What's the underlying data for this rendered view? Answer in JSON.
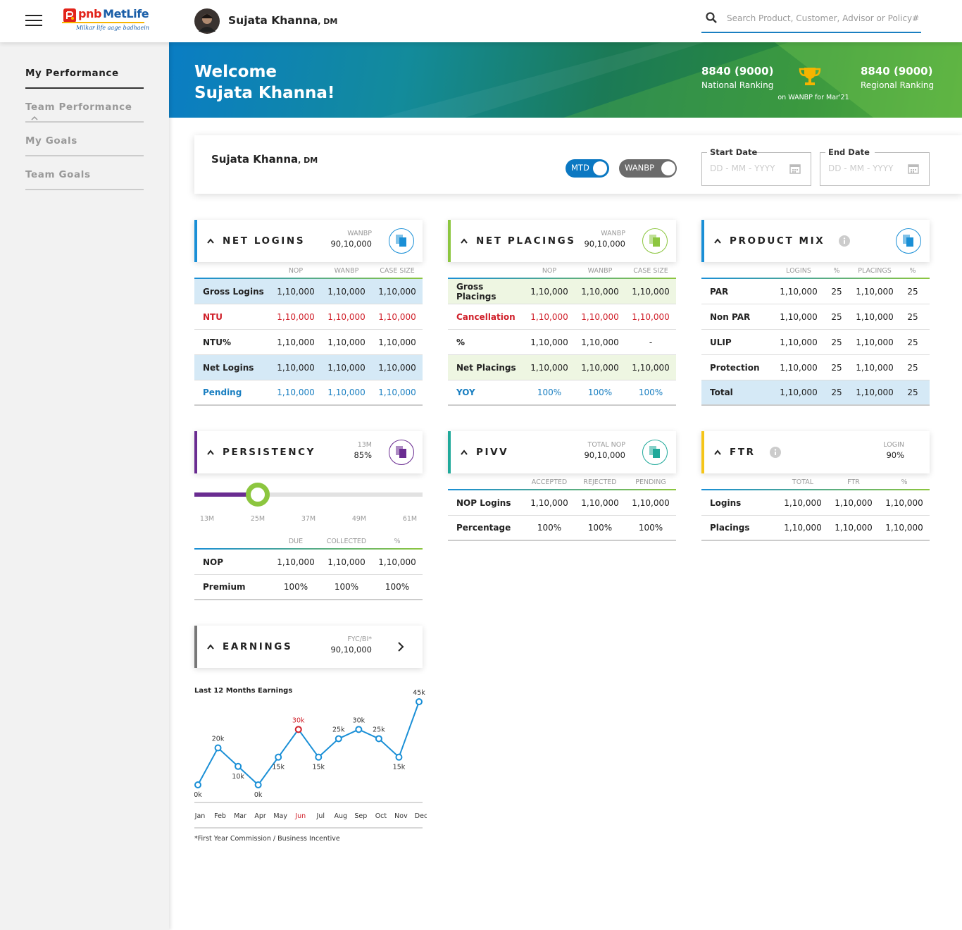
{
  "header": {
    "brand_prefix": "pnb",
    "brand": "MetLife",
    "tagline": "Milkar life aage badhaein",
    "user": "Sujata Khanna",
    "role": ", DM",
    "search_placeholder": "Search Product, Customer, Advisor or Policy#"
  },
  "sidebar": {
    "active": 0,
    "items": [
      {
        "label": "My Performance",
        "expandable": false
      },
      {
        "label": "Team Performance",
        "expandable": true
      },
      {
        "label": "My Goals",
        "expandable": false
      },
      {
        "label": "Team Goals",
        "expandable": false
      }
    ]
  },
  "banner": {
    "greeting": "Welcome",
    "name": "Sujata Khanna!",
    "national_rank": "8840 (9000)",
    "national_label": "National Ranking",
    "trophy_caption": "on WANBP for Mar'21",
    "regional_rank": "8840 (9000)",
    "regional_label": "Regional Ranking"
  },
  "filter": {
    "name": "Sujata Khanna",
    "role": ", DM",
    "toggles": [
      {
        "label": "MTD",
        "on": true,
        "color": "#0b78c2"
      },
      {
        "label": "WANBP",
        "on": false,
        "color": "#6b6b6b"
      }
    ],
    "start_label": "Start Date",
    "end_label": "End Date",
    "date_placeholder": "DD - MM - YYYY"
  },
  "cards": [
    {
      "title": "NET LOGINS",
      "accent": "#1a8fd6",
      "metric_label": "WANBP",
      "metric_value": "90,10,000",
      "icon": true,
      "info": false,
      "columns": [
        "NOP",
        "WANBP",
        "CASE SIZE"
      ],
      "rows": [
        {
          "label": "Gross Logins",
          "background": "#d5e9f6",
          "cells": [
            "1,10,000",
            "1,10,000",
            "1,10,000"
          ]
        },
        {
          "label": "NTU",
          "color": "#d0202a",
          "cells": [
            "1,10,000",
            "1,10,000",
            "1,10,000"
          ]
        },
        {
          "label": "NTU%",
          "cells": [
            "1,10,000",
            "1,10,000",
            "1,10,000"
          ]
        },
        {
          "label": "Net Logins",
          "background": "#d5e9f6",
          "cells": [
            "1,10,000",
            "1,10,000",
            "1,10,000"
          ]
        },
        {
          "label": "Pending",
          "color": "#1a7fc1",
          "cells": [
            "1,10,000",
            "1,10,000",
            "1,10,000"
          ]
        }
      ]
    },
    {
      "title": "NET PLACINGS",
      "accent": "#8cc63f",
      "metric_label": "WANBP",
      "metric_value": "90,10,000",
      "icon": true,
      "info": false,
      "columns": [
        "NOP",
        "WANBP",
        "CASE SIZE"
      ],
      "rows": [
        {
          "label": "Gross Placings",
          "background": "#eef6e2",
          "cells": [
            "1,10,000",
            "1,10,000",
            "1,10,000"
          ]
        },
        {
          "label": "Cancellation",
          "color": "#d0202a",
          "cells": [
            "1,10,000",
            "1,10,000",
            "1,10,000"
          ]
        },
        {
          "label": "%",
          "cells": [
            "1,10,000",
            "1,10,000",
            "-"
          ]
        },
        {
          "label": "Net Placings",
          "background": "#eef6e2",
          "cells": [
            "1,10,000",
            "1,10,000",
            "1,10,000"
          ]
        },
        {
          "label": "YOY",
          "color": "#1a7fc1",
          "cells": [
            "100%",
            "100%",
            "100%"
          ]
        }
      ]
    },
    {
      "title": "PRODUCT MIX",
      "accent": "#1a8fd6",
      "icon": true,
      "info": true,
      "columns": [
        "LOGINS",
        "%",
        "PLACINGS",
        "%"
      ],
      "rows": [
        {
          "label": "PAR",
          "cells": [
            "1,10,000",
            "25",
            "1,10,000",
            "25"
          ]
        },
        {
          "label": "Non PAR",
          "cells": [
            "1,10,000",
            "25",
            "1,10,000",
            "25"
          ]
        },
        {
          "label": "ULIP",
          "cells": [
            "1,10,000",
            "25",
            "1,10,000",
            "25"
          ]
        },
        {
          "label": "Protection",
          "cells": [
            "1,10,000",
            "25",
            "1,10,000",
            "25"
          ]
        },
        {
          "label": "Total",
          "background": "#d5e9f6",
          "cells": [
            "1,10,000",
            "25",
            "1,10,000",
            "25"
          ]
        }
      ]
    },
    {
      "title": "PERSISTENCY",
      "accent": "#6a2c91",
      "metric_label": "13M",
      "metric_value": "85%",
      "icon": true,
      "info": false,
      "slider": {
        "ticks": [
          "13M",
          "25M",
          "37M",
          "49M",
          "61M"
        ],
        "index": 1,
        "color": "#6a2c91",
        "knob_color": "#8cc63f"
      },
      "columns": [
        "DUE",
        "COLLECTED",
        "%"
      ],
      "rows": [
        {
          "label": "NOP",
          "cells": [
            "1,10,000",
            "1,10,000",
            "1,10,000"
          ]
        },
        {
          "label": "Premium",
          "cells": [
            "100%",
            "100%",
            "100%"
          ]
        }
      ]
    },
    {
      "title": "PIVV",
      "accent": "#1fa99a",
      "metric_label": "TOTAL NOP",
      "metric_value": "90,10,000",
      "icon": true,
      "info": false,
      "columns": [
        "ACCEPTED",
        "REJECTED",
        "PENDING"
      ],
      "rows": [
        {
          "label": "NOP Logins",
          "cells": [
            "1,10,000",
            "1,10,000",
            "1,10,000"
          ]
        },
        {
          "label": "Percentage",
          "cells": [
            "100%",
            "100%",
            "100%"
          ]
        }
      ]
    },
    {
      "title": "FTR",
      "accent": "#f5c518",
      "metric_label": "LOGIN",
      "metric_value": "90%",
      "icon": false,
      "info": true,
      "columns": [
        "TOTAL",
        "FTR",
        "%"
      ],
      "rows": [
        {
          "label": "Logins",
          "cells": [
            "1,10,000",
            "1,10,000",
            "1,10,000"
          ]
        },
        {
          "label": "Placings",
          "cells": [
            "1,10,000",
            "1,10,000",
            "1,10,000"
          ]
        }
      ]
    }
  ],
  "earnings": {
    "title": "EARNINGS",
    "accent": "#777777",
    "metric_label": "FYC/BI*",
    "metric_value": "90,10,000",
    "chart": {
      "type": "line",
      "title": "Last 12 Months Earnings",
      "categories": [
        "Jan",
        "Feb",
        "Mar",
        "Apr",
        "May",
        "Jun",
        "Jul",
        "Aug",
        "Sep",
        "Oct",
        "Nov",
        "Dec"
      ],
      "values": [
        0,
        20,
        10,
        0,
        15,
        30,
        15,
        25,
        30,
        25,
        15,
        45
      ],
      "value_labels": [
        "0k",
        "20k",
        "10k",
        "0k",
        "15k",
        "30k",
        "15k",
        "25k",
        "30k",
        "25k",
        "15k",
        "45k"
      ],
      "color": "#1a8fd6",
      "highlight_index": 5,
      "highlight_color": "#d0202a"
    },
    "footnote": "*First Year Commission / Business Incentive"
  }
}
